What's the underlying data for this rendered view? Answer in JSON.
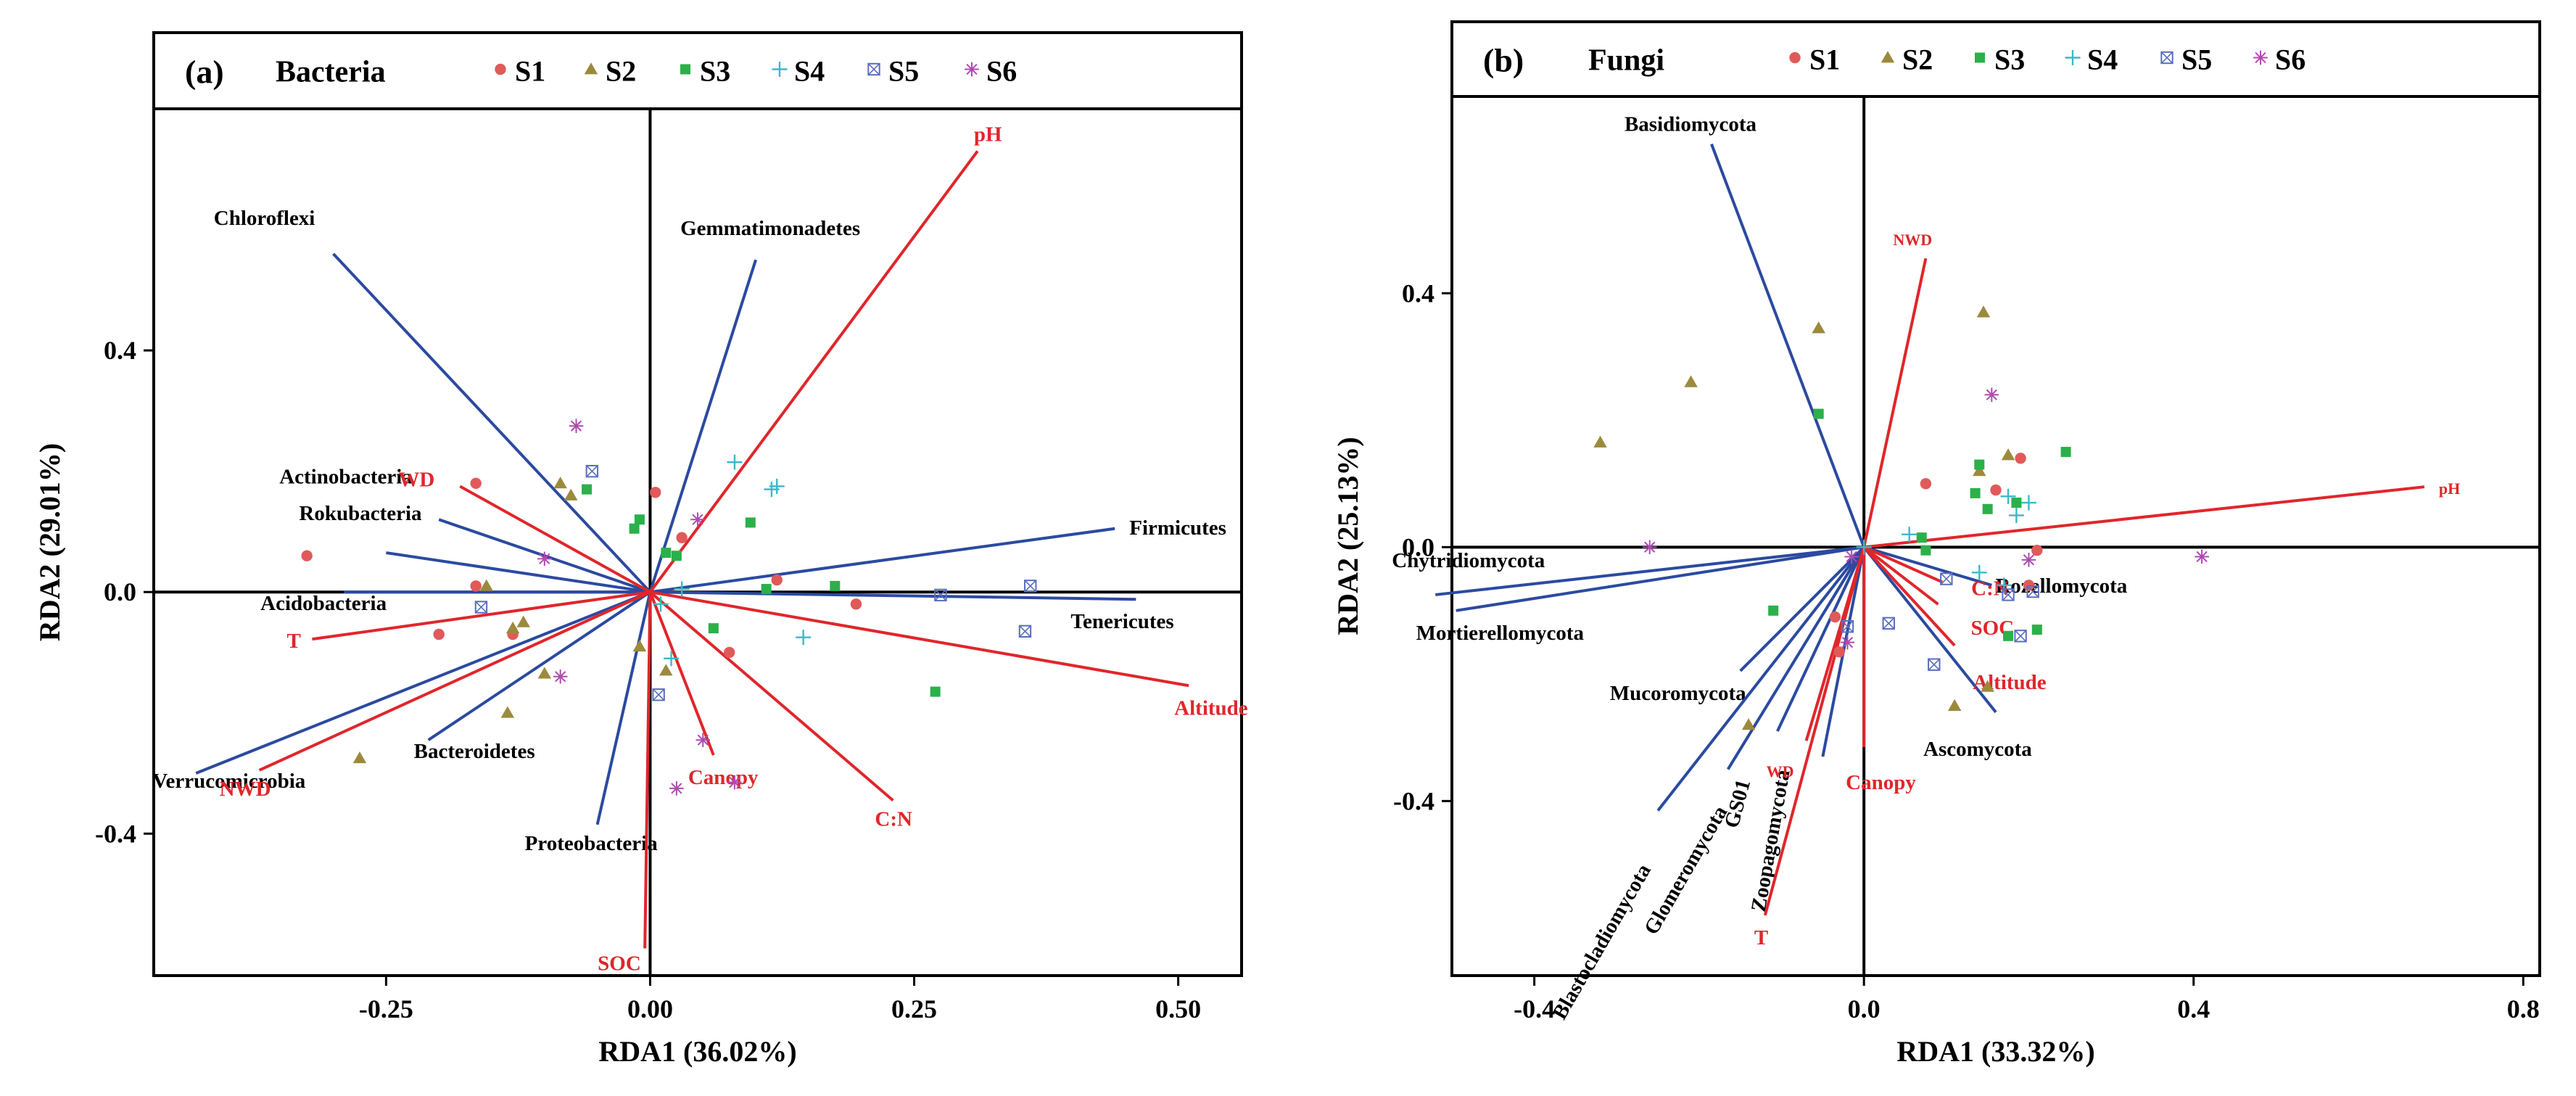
{
  "colors": {
    "response_arrow": "#2b4aa0",
    "env_arrow": "#e0262b",
    "env_label": "#e0262b",
    "axis": "#000000",
    "S1": "#e05a5a",
    "S2": "#9c8a3c",
    "S3": "#2bb04a",
    "S4": "#3cb8c8",
    "S5": "#5a6ec0",
    "S6": "#b04ab0"
  },
  "legend_items": [
    {
      "name": "S1",
      "symbol": "circle"
    },
    {
      "name": "S2",
      "symbol": "triangle"
    },
    {
      "name": "S3",
      "symbol": "square"
    },
    {
      "name": "S4",
      "symbol": "plus"
    },
    {
      "name": "S5",
      "symbol": "boxx"
    },
    {
      "name": "S6",
      "symbol": "asterisk"
    }
  ],
  "chart_data": [
    {
      "type": "scatter",
      "panel_tag": "(a)",
      "title": "Bacteria",
      "xlabel": "RDA1 (36.02%)",
      "ylabel": "RDA2 (29.01%)",
      "xlim": [
        -0.47,
        0.56
      ],
      "ylim": [
        -0.635,
        0.8
      ],
      "xticks": [
        -0.25,
        0.0,
        0.25,
        0.5
      ],
      "xtick_labels": [
        "-0.25",
        "0.00",
        "0.25",
        "0.50"
      ],
      "yticks": [
        -0.4,
        0.0,
        0.4
      ],
      "ytick_labels": [
        "-0.4",
        "0.0",
        "0.4"
      ],
      "grid": false,
      "response_arrows": [
        {
          "label": "Chloroflexi",
          "x": -0.3,
          "y": 0.56
        },
        {
          "label": "Gemmatimonadetes",
          "x": 0.1,
          "y": 0.55
        },
        {
          "label": "Firmicutes",
          "x": 0.44,
          "y": 0.105
        },
        {
          "label": "Tenericutes",
          "x": 0.46,
          "y": -0.012
        },
        {
          "label": "Actinobacteria",
          "x": -0.2,
          "y": 0.12
        },
        {
          "label": "Rokubacteria",
          "x": -0.25,
          "y": 0.065
        },
        {
          "label": "Acidobacteria",
          "x": -0.29,
          "y": 0.0
        },
        {
          "label": "Bacteroidetes",
          "x": -0.21,
          "y": -0.245
        },
        {
          "label": "Verrucomicrobia",
          "x": -0.43,
          "y": -0.3
        },
        {
          "label": "Proteobacteria",
          "x": -0.05,
          "y": -0.385
        }
      ],
      "env_arrows": [
        {
          "label": "pH",
          "x": 0.31,
          "y": 0.73
        },
        {
          "label": "WD",
          "x": -0.18,
          "y": 0.175
        },
        {
          "label": "T",
          "x": -0.32,
          "y": -0.078
        },
        {
          "label": "NWD",
          "x": -0.37,
          "y": -0.295
        },
        {
          "label": "Altitude",
          "x": 0.51,
          "y": -0.155
        },
        {
          "label": "Canopy",
          "x": 0.06,
          "y": -0.27
        },
        {
          "label": "C:N",
          "x": 0.23,
          "y": -0.345
        },
        {
          "label": "SOC",
          "x": -0.005,
          "y": -0.59
        }
      ],
      "points": {
        "S1": [
          [
            -0.325,
            0.06
          ],
          [
            -0.2,
            -0.07
          ],
          [
            -0.165,
            0.18
          ],
          [
            -0.165,
            0.01
          ],
          [
            0.005,
            0.165
          ],
          [
            0.03,
            0.09
          ],
          [
            0.075,
            -0.1
          ],
          [
            0.12,
            0.02
          ],
          [
            0.195,
            -0.02
          ],
          [
            -0.13,
            -0.07
          ]
        ],
        "S2": [
          [
            -0.275,
            -0.275
          ],
          [
            -0.155,
            0.01
          ],
          [
            -0.135,
            -0.2
          ],
          [
            -0.13,
            -0.06
          ],
          [
            -0.1,
            -0.135
          ],
          [
            -0.085,
            0.18
          ],
          [
            -0.075,
            0.16
          ],
          [
            -0.01,
            -0.09
          ],
          [
            0.015,
            -0.13
          ],
          [
            -0.12,
            -0.05
          ]
        ],
        "S3": [
          [
            -0.06,
            0.17
          ],
          [
            -0.01,
            0.12
          ],
          [
            -0.015,
            0.105
          ],
          [
            0.025,
            0.06
          ],
          [
            0.06,
            -0.06
          ],
          [
            0.095,
            0.115
          ],
          [
            0.11,
            0.005
          ],
          [
            0.175,
            0.01
          ],
          [
            0.27,
            -0.165
          ],
          [
            0.015,
            0.065
          ]
        ],
        "S4": [
          [
            0.08,
            0.215
          ],
          [
            0.115,
            0.17
          ],
          [
            0.12,
            0.175
          ],
          [
            0.145,
            -0.075
          ],
          [
            0.02,
            -0.11
          ],
          [
            0.03,
            0.005
          ],
          [
            0.01,
            -0.02
          ]
        ],
        "S5": [
          [
            -0.055,
            0.2
          ],
          [
            -0.16,
            -0.025
          ],
          [
            0.008,
            -0.17
          ],
          [
            0.275,
            -0.005
          ],
          [
            0.36,
            0.01
          ],
          [
            0.355,
            -0.065
          ]
        ],
        "S6": [
          [
            -0.07,
            0.275
          ],
          [
            -0.1,
            0.055
          ],
          [
            -0.085,
            -0.14
          ],
          [
            0.045,
            0.12
          ],
          [
            0.05,
            -0.245
          ],
          [
            0.025,
            -0.325
          ],
          [
            0.08,
            -0.315
          ]
        ]
      }
    },
    {
      "type": "scatter",
      "panel_tag": "(b)",
      "title": "Fungi",
      "xlabel": "RDA1 (33.32%)",
      "ylabel": "RDA2 (25.13%)",
      "xlim": [
        -0.5,
        0.82
      ],
      "ylim": [
        -0.675,
        0.71
      ],
      "xticks": [
        -0.4,
        0.0,
        0.4,
        0.8
      ],
      "xtick_labels": [
        "-0.4",
        "0.0",
        "0.4",
        "0.8"
      ],
      "yticks": [
        -0.4,
        0.0,
        0.4
      ],
      "ytick_labels": [
        "-0.4",
        "0.0",
        "0.4"
      ],
      "grid": false,
      "response_arrows": [
        {
          "label": "Basidiomycota",
          "x": -0.185,
          "y": 0.635
        },
        {
          "label": "Chytridiomycota",
          "x": -0.52,
          "y": -0.075
        },
        {
          "label": "Mortierellomycota",
          "x": -0.495,
          "y": -0.1
        },
        {
          "label": "Mucoromycota",
          "x": -0.15,
          "y": -0.195
        },
        {
          "label": "Blastocladiomycota",
          "x": -0.25,
          "y": -0.415
        },
        {
          "label": "Glomeromycota",
          "x": -0.165,
          "y": -0.35
        },
        {
          "label": "GS01",
          "x": -0.105,
          "y": -0.29
        },
        {
          "label": "Zoopagomycota",
          "x": -0.05,
          "y": -0.33
        },
        {
          "label": "Rozellomycota",
          "x": 0.155,
          "y": -0.06
        },
        {
          "label": "Ascomycota",
          "x": 0.16,
          "y": -0.26
        }
      ],
      "env_arrows": [
        {
          "label": "NWD",
          "x": 0.075,
          "y": 0.455
        },
        {
          "label": "pH",
          "x": 0.68,
          "y": 0.095
        },
        {
          "label": "C:N",
          "x": 0.095,
          "y": -0.055
        },
        {
          "label": "SOC",
          "x": 0.09,
          "y": -0.09
        },
        {
          "label": "Altitude",
          "x": 0.11,
          "y": -0.155
        },
        {
          "label": "Canopy",
          "x": 0.0,
          "y": -0.315
        },
        {
          "label": "WD",
          "x": -0.07,
          "y": -0.305
        },
        {
          "label": "T",
          "x": -0.12,
          "y": -0.58
        }
      ],
      "points": {
        "S1": [
          [
            0.19,
            0.14
          ],
          [
            0.16,
            0.09
          ],
          [
            -0.03,
            -0.165
          ],
          [
            -0.035,
            -0.11
          ],
          [
            0.2,
            -0.06
          ],
          [
            0.21,
            -0.005
          ],
          [
            0.075,
            0.1
          ]
        ],
        "S2": [
          [
            -0.32,
            0.165
          ],
          [
            -0.21,
            0.26
          ],
          [
            -0.055,
            0.345
          ],
          [
            -0.14,
            -0.28
          ],
          [
            0.145,
            0.37
          ],
          [
            0.175,
            0.145
          ],
          [
            0.15,
            -0.22
          ],
          [
            0.11,
            -0.25
          ],
          [
            0.14,
            0.12
          ]
        ],
        "S3": [
          [
            -0.11,
            -0.1
          ],
          [
            -0.055,
            0.21
          ],
          [
            0.075,
            -0.005
          ],
          [
            0.135,
            0.085
          ],
          [
            0.14,
            0.13
          ],
          [
            0.245,
            0.15
          ],
          [
            0.15,
            0.06
          ],
          [
            0.185,
            0.07
          ],
          [
            0.175,
            -0.14
          ],
          [
            0.21,
            -0.13
          ],
          [
            0.07,
            0.015
          ]
        ],
        "S4": [
          [
            0.175,
            0.08
          ],
          [
            0.2,
            0.07
          ],
          [
            0.185,
            0.05
          ],
          [
            0.0,
            0.0
          ],
          [
            0.055,
            0.02
          ],
          [
            0.14,
            -0.04
          ],
          [
            0.17,
            -0.06
          ]
        ],
        "S5": [
          [
            -0.02,
            -0.125
          ],
          [
            0.03,
            -0.12
          ],
          [
            0.085,
            -0.185
          ],
          [
            0.19,
            -0.14
          ],
          [
            0.1,
            -0.05
          ],
          [
            0.175,
            -0.075
          ],
          [
            0.205,
            -0.07
          ]
        ],
        "S6": [
          [
            -0.26,
            0.0
          ],
          [
            0.155,
            0.24
          ],
          [
            0.41,
            -0.015
          ],
          [
            -0.015,
            -0.015
          ],
          [
            -0.02,
            -0.15
          ],
          [
            0.2,
            -0.02
          ]
        ]
      }
    }
  ]
}
